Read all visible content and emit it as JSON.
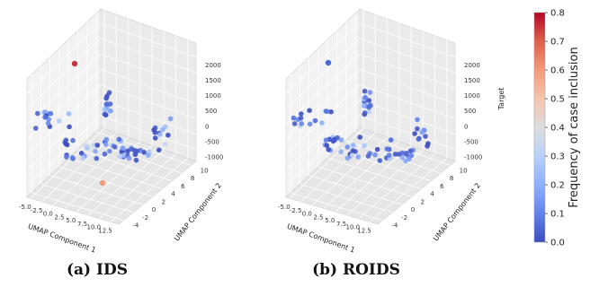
{
  "chart_data": [
    {
      "type": "scatter3d",
      "caption": "(a) IDS",
      "xlabel": "UMAP Component 1",
      "ylabel": "UMAP Component 2",
      "zlabel": "",
      "xticks": [
        "-5.0",
        "-2.5",
        "0.0",
        "2.5",
        "5.0",
        "7.5",
        "10.0",
        "12.5"
      ],
      "yticks": [
        "-4",
        "-2",
        "0",
        "2",
        "4",
        "6",
        "8",
        "10"
      ],
      "zticks": [
        "2000",
        "1500",
        "1000",
        "500",
        "0",
        "-500",
        "-1000"
      ],
      "xlim": [
        -5,
        14
      ],
      "ylim": [
        -4,
        11
      ],
      "zlim": [
        -1000,
        2200
      ],
      "highlight_points": [
        {
          "x": -4.5,
          "y": 8,
          "z": 2100,
          "freq": 0.75
        },
        {
          "x": 7.5,
          "y": -3.5,
          "z": -1000,
          "freq": 0.6
        }
      ]
    },
    {
      "type": "scatter3d",
      "caption": "(b) ROIDS",
      "xlabel": "UMAP Component 1",
      "ylabel": "UMAP Component 2",
      "zlabel": "Target",
      "xticks": [
        "-5.0",
        "-2.5",
        "0.0",
        "2.5",
        "5.0",
        "7.5",
        "10.0",
        "12.5"
      ],
      "yticks": [
        "-4",
        "-2",
        "0",
        "2",
        "4",
        "6",
        "8",
        "10"
      ],
      "zticks": [
        "2000",
        "1500",
        "1000",
        "500",
        "0",
        "-500",
        "-1000"
      ],
      "xlim": [
        -5,
        14
      ],
      "ylim": [
        -4,
        11
      ],
      "zlim": [
        -1000,
        2200
      ],
      "highlight_points": [
        {
          "x": -4.5,
          "y": 8,
          "z": 2100,
          "freq": 0.05
        }
      ]
    }
  ],
  "colorbar": {
    "label": "Frequency of case inclusion",
    "ticks": [
      "0.8",
      "0.7",
      "0.6",
      "0.5",
      "0.4",
      "0.3",
      "0.2",
      "0.1",
      "0.0"
    ],
    "range": [
      0.0,
      0.8
    ],
    "colormap": "coolwarm",
    "low_color": "#3b4cc0",
    "high_color": "#b40426"
  }
}
